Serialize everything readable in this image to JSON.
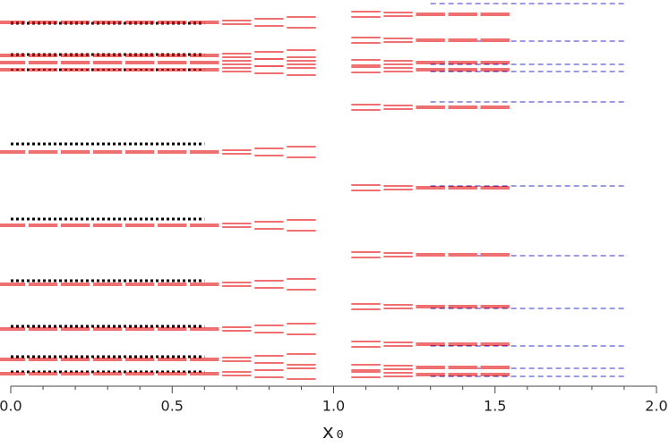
{
  "chart_data": {
    "type": "segments",
    "xlabel": "x₀",
    "xlim": [
      0,
      2
    ],
    "ylim": [
      0,
      43
    ],
    "xticks": [
      {
        "value": 0,
        "label": "0.0"
      },
      0.5,
      {
        "value": 1,
        "label": "1.0"
      },
      1.5,
      {
        "value": 2,
        "label": "2.0"
      }
    ],
    "xminorticks": [
      0.1,
      0.2,
      0.3,
      0.4,
      0.6,
      0.7,
      0.8,
      0.9,
      1.1,
      1.2,
      1.3,
      1.4,
      1.6,
      1.7,
      1.8,
      1.9
    ],
    "series": [
      {
        "color": "#e41a1c",
        "style": "solid",
        "x": 0.0,
        "values": [
          40.8,
          40.6,
          37.1,
          36.9,
          36.3,
          36.1,
          35.5,
          35.3,
          26.3,
          26.1,
          18.1,
          17.9,
          11.5,
          11.3,
          6.5,
          6.3,
          3.1,
          2.9,
          1.5,
          1.3
        ]
      },
      {
        "color": "#e41a1c",
        "style": "solid",
        "x": 0.1,
        "values": [
          40.8,
          40.6,
          37.1,
          36.9,
          36.3,
          36.1,
          35.5,
          35.3,
          26.3,
          26.1,
          18.1,
          17.9,
          11.5,
          11.3,
          6.5,
          6.3,
          3.1,
          2.9,
          1.5,
          1.3
        ]
      },
      {
        "color": "#e41a1c",
        "style": "solid",
        "x": 0.2,
        "values": [
          40.8,
          40.6,
          37.1,
          36.9,
          36.3,
          36.1,
          35.5,
          35.3,
          26.3,
          26.1,
          18.1,
          17.9,
          11.5,
          11.3,
          6.5,
          6.3,
          3.1,
          2.9,
          1.5,
          1.3
        ]
      },
      {
        "color": "#e41a1c",
        "style": "solid",
        "x": 0.3,
        "values": [
          40.8,
          40.6,
          37.1,
          36.9,
          36.3,
          36.1,
          35.5,
          35.3,
          26.3,
          26.1,
          18.1,
          17.9,
          11.5,
          11.3,
          6.5,
          6.3,
          3.1,
          2.9,
          1.5,
          1.3
        ]
      },
      {
        "color": "#e41a1c",
        "style": "solid",
        "x": 0.4,
        "values": [
          40.8,
          40.6,
          37.1,
          36.9,
          36.3,
          36.1,
          35.5,
          35.3,
          26.3,
          26.1,
          18.1,
          17.9,
          11.5,
          11.3,
          6.5,
          6.3,
          3.1,
          2.9,
          1.5,
          1.3
        ]
      },
      {
        "color": "#e41a1c",
        "style": "solid",
        "x": 0.5,
        "values": [
          40.8,
          40.6,
          37.1,
          36.9,
          36.3,
          36.1,
          35.5,
          35.3,
          26.3,
          26.1,
          18.1,
          17.9,
          11.5,
          11.3,
          6.5,
          6.3,
          3.1,
          2.9,
          1.5,
          1.3
        ]
      },
      {
        "color": "#e41a1c",
        "style": "solid",
        "x": 0.6,
        "values": [
          40.8,
          40.6,
          37.1,
          36.9,
          36.3,
          36.1,
          35.5,
          35.3,
          26.3,
          26.1,
          18.1,
          17.9,
          11.5,
          11.3,
          6.5,
          6.3,
          3.1,
          2.9,
          1.5,
          1.3
        ]
      },
      {
        "color": "#e41a1c",
        "style": "solid",
        "x": 0.7,
        "values": [
          40.9,
          40.5,
          37.2,
          36.8,
          36.4,
          36.0,
          35.6,
          35.2,
          26.4,
          26.0,
          18.2,
          17.8,
          11.6,
          11.2,
          6.6,
          6.2,
          3.2,
          2.8,
          1.6,
          1.2
        ]
      },
      {
        "color": "#e41a1c",
        "style": "solid",
        "x": 0.8,
        "values": [
          41.1,
          40.3,
          37.4,
          36.6,
          36.6,
          35.8,
          35.8,
          35.0,
          26.6,
          25.8,
          18.4,
          17.6,
          11.8,
          11.0,
          6.8,
          6.0,
          3.4,
          2.6,
          1.8,
          1.0
        ]
      },
      {
        "color": "#e41a1c",
        "style": "solid",
        "x": 0.9,
        "values": [
          41.3,
          40.1,
          37.6,
          36.4,
          36.8,
          35.6,
          36.0,
          34.8,
          26.8,
          25.6,
          18.6,
          17.4,
          12.0,
          10.8,
          7.0,
          5.8,
          3.6,
          2.4,
          2.0,
          0.8
        ]
      },
      {
        "color": "#e41a1c",
        "style": "solid",
        "x": 1.1,
        "values": [
          41.9,
          41.3,
          39.0,
          38.4,
          36.5,
          35.9,
          35.7,
          35.1,
          31.5,
          30.9,
          22.5,
          21.9,
          15.0,
          14.4,
          9.2,
          8.6,
          5.0,
          4.4,
          2.4,
          1.8,
          1.6,
          1.0
        ]
      },
      {
        "color": "#e41a1c",
        "style": "solid",
        "x": 1.2,
        "values": [
          41.8,
          41.4,
          38.9,
          38.5,
          36.4,
          36.0,
          35.6,
          35.2,
          31.4,
          31.0,
          22.4,
          22.0,
          14.9,
          14.5,
          9.1,
          8.7,
          4.9,
          4.5,
          2.3,
          1.9,
          1.5,
          1.1
        ]
      },
      {
        "color": "#e41a1c",
        "style": "solid",
        "x": 1.3,
        "values": [
          41.7,
          41.5,
          38.8,
          38.6,
          36.3,
          36.1,
          35.5,
          35.3,
          31.3,
          31.1,
          22.3,
          22.1,
          14.8,
          14.6,
          9.0,
          8.8,
          4.8,
          4.6,
          2.2,
          2.0,
          1.4,
          1.2
        ]
      },
      {
        "color": "#e41a1c",
        "style": "solid",
        "x": 1.4,
        "values": [
          41.7,
          41.5,
          38.8,
          38.6,
          36.3,
          36.1,
          35.5,
          35.3,
          31.3,
          31.1,
          22.3,
          22.1,
          14.8,
          14.6,
          9.0,
          8.8,
          4.8,
          4.6,
          2.2,
          2.0,
          1.4,
          1.2
        ]
      },
      {
        "color": "#e41a1c",
        "style": "solid",
        "x": 1.5,
        "values": [
          41.7,
          41.5,
          38.8,
          38.6,
          36.3,
          36.1,
          35.5,
          35.3,
          31.3,
          31.1,
          22.3,
          22.1,
          14.8,
          14.6,
          9.0,
          8.8,
          4.8,
          4.6,
          2.2,
          2.0,
          1.4,
          1.2
        ]
      }
    ],
    "reference_lines": [
      {
        "color": "#000000",
        "style": "dotted",
        "xrange": [
          0,
          0.6
        ],
        "values": [
          40.6,
          37.1,
          35.4,
          27.1,
          18.7,
          11.8,
          6.7,
          3.3,
          1.6
        ]
      },
      {
        "color": "#3333cc",
        "style": "dashed",
        "xrange": [
          1.3,
          1.9
        ],
        "values": [
          42.8,
          38.6,
          36.0,
          35.2,
          31.8,
          22.4,
          14.6,
          8.7,
          4.5,
          2.0,
          1.1
        ]
      }
    ]
  }
}
